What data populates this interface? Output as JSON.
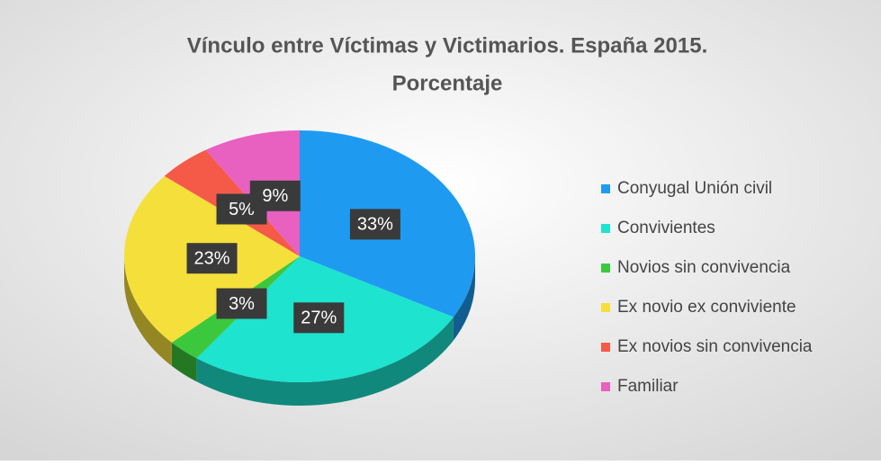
{
  "chart_data": {
    "type": "pie3d",
    "title": [
      "Vínculo entre Víctimas y Victimarios. España 2015.",
      "Porcentaje"
    ],
    "categories": [
      "Conyugal Unión civil",
      "Convivientes",
      "Novios sin convivencia",
      "Ex novio ex conviviente",
      "Ex novios sin convivencia",
      "Familiar"
    ],
    "values": [
      33,
      27,
      3,
      23,
      5,
      9
    ],
    "value_labels": [
      "33%",
      "27%",
      "3%",
      "23%",
      "5%",
      "9%"
    ],
    "colors": [
      "#1e9bf0",
      "#1de3cf",
      "#3cc83c",
      "#f5df3a",
      "#f55a48",
      "#e860c0"
    ],
    "legend": "right"
  }
}
